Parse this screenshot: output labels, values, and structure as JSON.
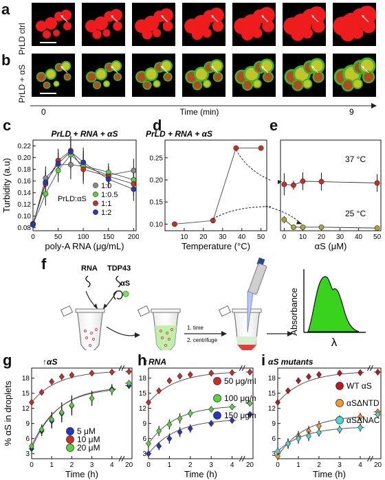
{
  "panels": {
    "a": {
      "letter": "a",
      "row_label": "PrLD ctrl"
    },
    "b": {
      "letter": "b",
      "row_label": "PrLD + αS"
    },
    "time_axis": {
      "label": "Time (min)",
      "start": "0",
      "end": "9"
    },
    "c": {
      "letter": "c"
    },
    "d": {
      "letter": "d"
    },
    "e": {
      "letter": "e"
    },
    "f": {
      "letter": "f",
      "rna": "RNA",
      "tdp43": "TDP43",
      "as": "αS",
      "step1": "1. time",
      "step2": "2. centrifuge",
      "absorbance": "Absorbance",
      "lambda": "λ"
    },
    "g": {
      "letter": "g"
    },
    "h": {
      "letter": "h"
    },
    "i": {
      "letter": "i"
    }
  },
  "colors": {
    "red": "#d42a24",
    "green": "#57d43a",
    "grey": "#8a8a8a",
    "blue": "#2436c8",
    "orange": "#f39a2c",
    "cyan": "#4bd6d8",
    "darkred": "#c0181e",
    "olive": "#a9a632"
  },
  "chart_data": [
    {
      "id": "c",
      "type": "line",
      "title": "PrLD + RNA + αS",
      "xlabel": "poly-A RNA (μg/mL)",
      "ylabel": "Turbidity (a.u)",
      "xlim": [
        0,
        205
      ],
      "ylim": [
        0.075,
        0.23
      ],
      "xticks": [
        0,
        50,
        100,
        150,
        200
      ],
      "yticks": [
        0.08,
        0.1,
        0.12,
        0.14,
        0.16,
        0.18,
        0.2,
        0.22
      ],
      "x": [
        0,
        25,
        50,
        75,
        100,
        150,
        200
      ],
      "legend_title": "PrLD:αS",
      "series": [
        {
          "name": "1:0",
          "color": "#8a8a8a",
          "values": [
            0.085,
            0.165,
            0.188,
            0.188,
            0.185,
            0.17,
            0.178
          ],
          "err": [
            0.003,
            0.02,
            0.02,
            0.025,
            0.025,
            0.015,
            0.02
          ]
        },
        {
          "name": "1:0.5",
          "color": "#57d43a",
          "values": [
            0.086,
            0.138,
            0.178,
            0.205,
            0.186,
            0.175,
            0.162
          ],
          "err": [
            0.003,
            0.02,
            0.02,
            0.025,
            0.025,
            0.015,
            0.02
          ]
        },
        {
          "name": "1:1",
          "color": "#d42a24",
          "values": [
            0.087,
            0.155,
            0.195,
            0.212,
            0.18,
            0.168,
            0.155
          ],
          "err": [
            0.003,
            0.02,
            0.02,
            0.025,
            0.025,
            0.015,
            0.02
          ]
        },
        {
          "name": "1:2",
          "color": "#2436c8",
          "values": [
            0.086,
            0.158,
            0.19,
            0.21,
            0.192,
            0.163,
            0.146
          ],
          "err": [
            0.003,
            0.02,
            0.02,
            0.025,
            0.025,
            0.015,
            0.02
          ]
        }
      ]
    },
    {
      "id": "d",
      "type": "line",
      "title": "PrLD + RNA + αS",
      "xlabel": "Temperature (°C)",
      "ylabel": "",
      "xlim": [
        0,
        53
      ],
      "ylim": [
        0.085,
        0.29
      ],
      "xticks": [
        10,
        20,
        30,
        40,
        50
      ],
      "yticks": [
        0.1,
        0.15,
        0.2,
        0.25
      ],
      "x": [
        5,
        25,
        37,
        50
      ],
      "values": [
        0.1,
        0.108,
        0.272,
        0.272
      ],
      "color": "#d42a24"
    },
    {
      "id": "e",
      "type": "scatter",
      "title": "",
      "xlabel": "αS (μM)",
      "ylabel": "",
      "xlim": [
        -2,
        52
      ],
      "ylim": [
        0.085,
        0.29
      ],
      "xticks": [
        0,
        10,
        20,
        30,
        40,
        50
      ],
      "yticks": [],
      "series": [
        {
          "name": "37 °C",
          "color": "#d42a24",
          "x": [
            0,
            5,
            10,
            20,
            50
          ],
          "values": [
            0.19,
            0.188,
            0.197,
            0.196,
            0.193
          ],
          "err": [
            0.025,
            0.01,
            0.02,
            0.02,
            0.02
          ]
        },
        {
          "name": "25 °C",
          "color": "#a9a632",
          "x": [
            0,
            5,
            10,
            20,
            50
          ],
          "values": [
            0.11,
            0.093,
            0.093,
            0.093,
            0.091
          ],
          "err": [
            0.008,
            0.004,
            0.003,
            0.003,
            0.003
          ]
        }
      ]
    },
    {
      "id": "g",
      "type": "scatter",
      "title": "↑αS",
      "xlabel": "Time (h)",
      "ylabel": "% αS in droplets",
      "xlim": [
        0,
        5
      ],
      "ylim": [
        2,
        20
      ],
      "xticks": [
        0,
        1,
        2,
        3,
        4
      ],
      "break_tick": "20",
      "yticks": [
        3,
        6,
        9,
        12,
        15,
        18
      ],
      "x": [
        0,
        0.5,
        1,
        1.5,
        2,
        3,
        4
      ],
      "series": [
        {
          "name": "5 μM",
          "color": "#2436c8",
          "values": [
            4,
            7.5,
            9.5,
            11,
            12.5,
            14,
            15.8
          ],
          "end": 16.5,
          "err": [
            0.5,
            1,
            1.5,
            1.5,
            1.5,
            1,
            1
          ]
        },
        {
          "name": "10 μM",
          "color": "#d42a24",
          "values": [
            13.2,
            15.2,
            17.3,
            18.3,
            18.6,
            19,
            19.2
          ],
          "end": 19.3,
          "err": [
            0.4,
            0.4,
            0.4,
            0.3,
            0.3,
            0.3,
            0.3
          ]
        },
        {
          "name": "20 μM",
          "color": "#57d43a",
          "values": [
            4.5,
            7.8,
            9.8,
            11.2,
            12.6,
            14,
            15.6
          ],
          "end": 17,
          "err": [
            0.5,
            1,
            1.5,
            2,
            2,
            1.5,
            1
          ]
        }
      ]
    },
    {
      "id": "h",
      "type": "scatter",
      "title": "↑RNA",
      "xlabel": "Time (h)",
      "ylabel": "",
      "xlim": [
        0,
        5
      ],
      "ylim": [
        2,
        20
      ],
      "xticks": [
        0,
        1,
        2,
        3,
        4
      ],
      "break_tick": "20",
      "yticks": [
        3,
        6,
        9,
        12,
        15,
        18
      ],
      "x": [
        0,
        0.5,
        1,
        1.5,
        2,
        3,
        4
      ],
      "series": [
        {
          "name": "50 μg/mL",
          "color": "#d42a24",
          "values": [
            13.2,
            15.5,
            17.5,
            18.4,
            18.7,
            19,
            19.1
          ],
          "end": 19.2,
          "err": [
            0.4,
            0.4,
            0.3,
            0.3,
            0.3,
            0.3,
            0.3
          ]
        },
        {
          "name": "100 μg/mL",
          "color": "#57d43a",
          "values": [
            5,
            7.5,
            8.8,
            10,
            11,
            11.8,
            12.3
          ],
          "end": 13,
          "err": [
            0.8,
            1,
            1,
            1,
            0.8,
            0.6,
            0.5
          ]
        },
        {
          "name": "150 μg/mL",
          "color": "#2436c8",
          "values": [
            3,
            4.5,
            6,
            7.3,
            8,
            9,
            9.6
          ],
          "end": 10.8,
          "err": [
            0.5,
            0.8,
            1,
            1,
            0.8,
            0.6,
            0.5
          ]
        }
      ]
    },
    {
      "id": "i",
      "type": "scatter",
      "title": "αS mutants",
      "xlabel": "Time (h)",
      "ylabel": "",
      "xlim": [
        0,
        5
      ],
      "ylim": [
        2,
        20
      ],
      "xticks": [
        0,
        1,
        2,
        3,
        4
      ],
      "break_tick": "20",
      "yticks": [
        3,
        6,
        9,
        12,
        15,
        18
      ],
      "x": [
        0,
        0.5,
        1,
        1.5,
        2,
        3,
        4
      ],
      "series": [
        {
          "name": "WT αS",
          "color": "#c0181e",
          "values": [
            13.2,
            15.5,
            17.5,
            18.3,
            18.7,
            19,
            19.1
          ],
          "end": 19.2,
          "err": [
            0.4,
            0.4,
            0.3,
            0.3,
            0.3,
            0.3,
            0.3
          ]
        },
        {
          "name": "αSΔNTD",
          "color": "#f39a2c",
          "values": [
            2.5,
            5,
            6.5,
            7.5,
            8.5,
            9.8,
            10.3
          ],
          "end": 11.3,
          "err": [
            0.8,
            1,
            1,
            1,
            1,
            0.8,
            0.8
          ]
        },
        {
          "name": "αSΔNAC",
          "color": "#4bd6d8",
          "values": [
            3.5,
            5,
            6,
            6.5,
            7.2,
            7.8,
            8.2
          ],
          "end": 10.8,
          "err": [
            0.8,
            1,
            1,
            1,
            0.8,
            0.8,
            0.8
          ]
        }
      ]
    }
  ]
}
